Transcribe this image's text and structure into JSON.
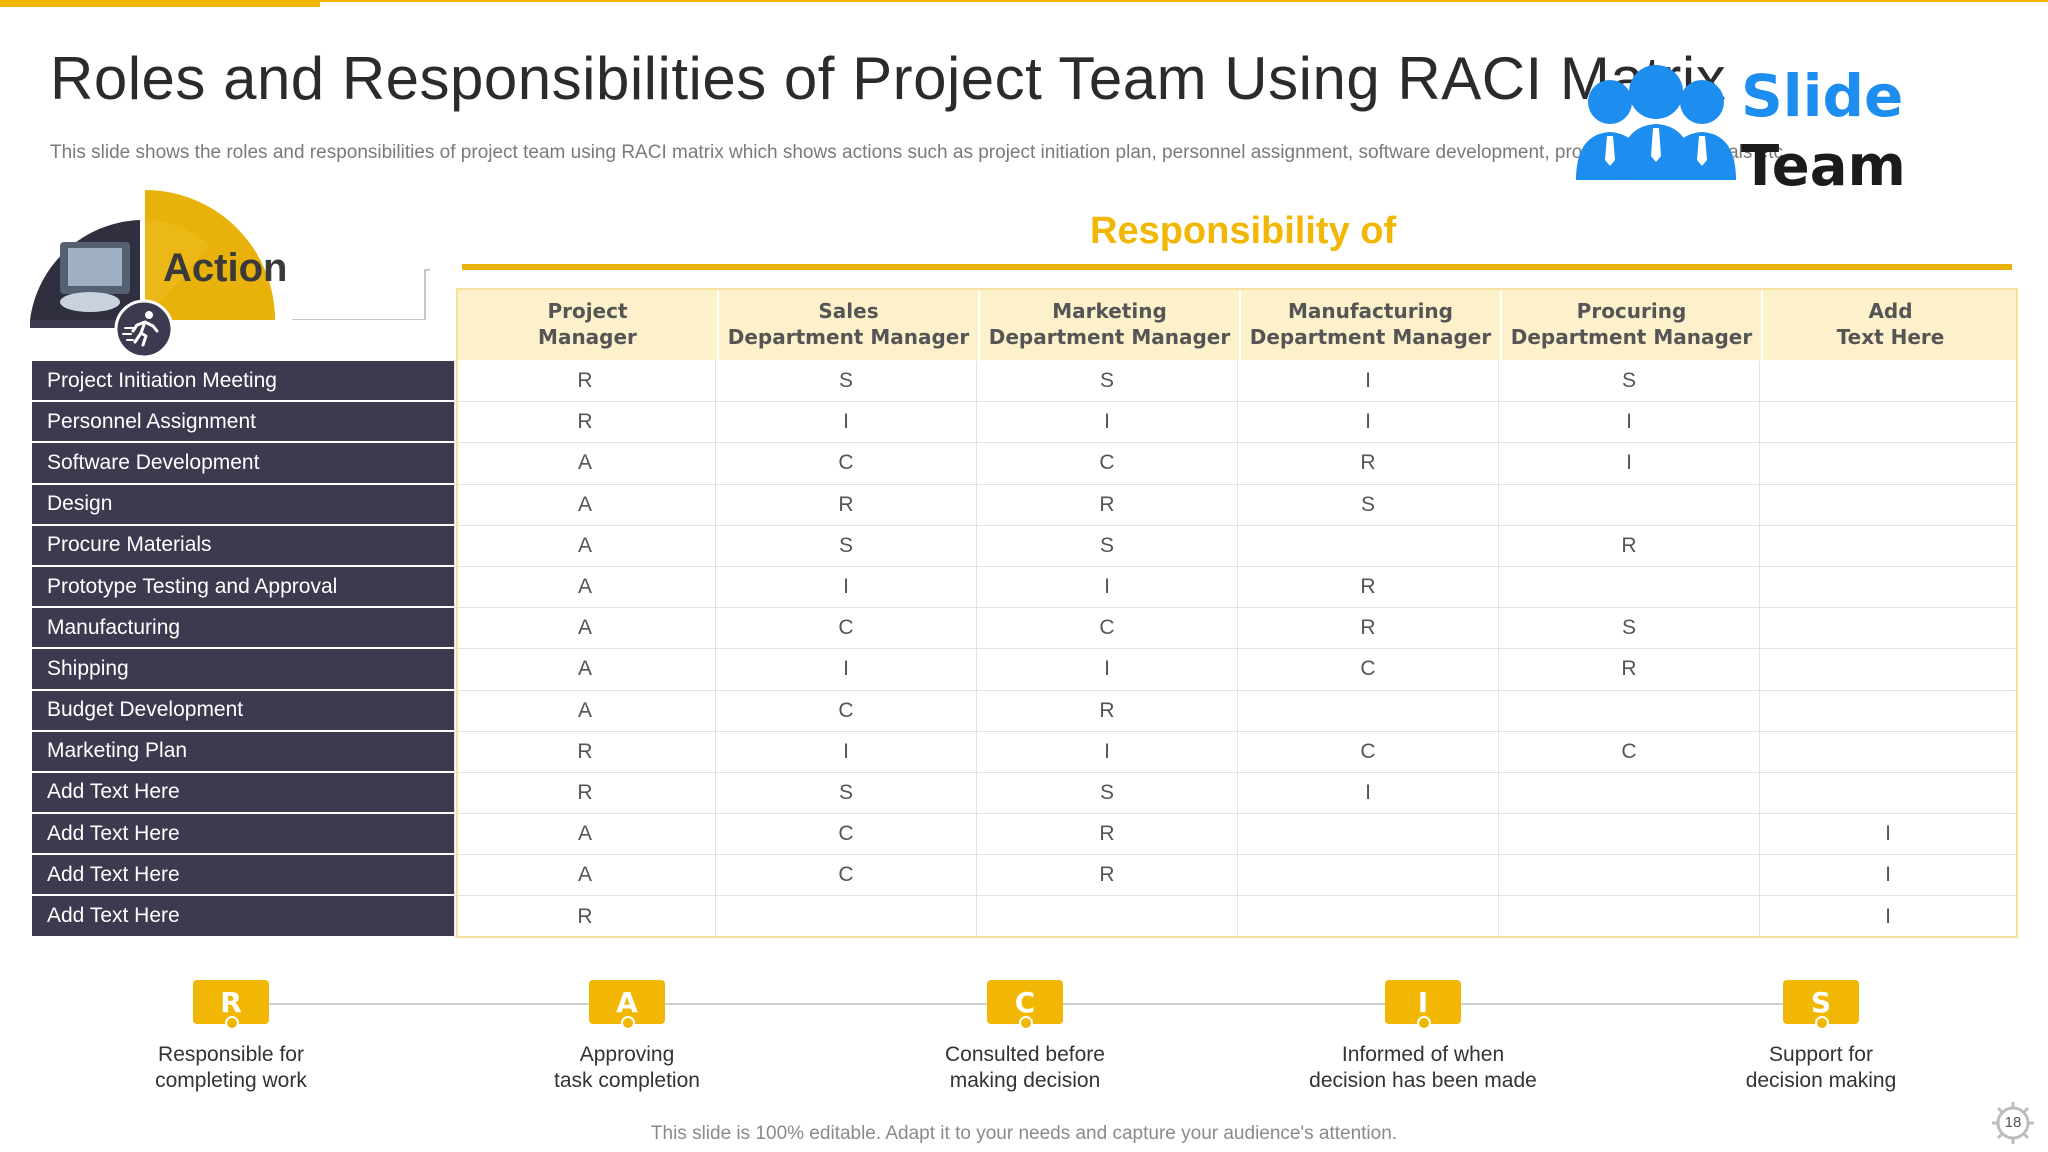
{
  "title": "Roles and Responsibilities of Project Team Using RACI Matrix",
  "subtitle": "This slide shows the roles and responsibilities of project team using RACI matrix which shows actions such as project initiation plan, personnel assignment, software development, procuring raw materials etc.",
  "logo": {
    "line1": "Slide",
    "line2": "Team"
  },
  "action_label": "Action",
  "responsibility_title": "Responsibility of",
  "columns": [
    "Project\nManager",
    "Sales\nDepartment Manager",
    "Marketing\nDepartment Manager",
    "Manufacturing\nDepartment Manager",
    "Procuring\nDepartment Manager",
    "Add\nText Here"
  ],
  "rows": [
    {
      "label": "Project Initiation Meeting",
      "cells": [
        "R",
        "S",
        "S",
        "I",
        "S",
        ""
      ]
    },
    {
      "label": "Personnel Assignment",
      "cells": [
        "R",
        "I",
        "I",
        "I",
        "I",
        ""
      ]
    },
    {
      "label": "Software Development",
      "cells": [
        "A",
        "C",
        "C",
        "R",
        "I",
        ""
      ]
    },
    {
      "label": "Design",
      "cells": [
        "A",
        "R",
        "R",
        "S",
        "",
        ""
      ]
    },
    {
      "label": "Procure Materials",
      "cells": [
        "A",
        "S",
        "S",
        "",
        "R",
        ""
      ]
    },
    {
      "label": "Prototype Testing and Approval",
      "cells": [
        "A",
        "I",
        "I",
        "R",
        "",
        ""
      ]
    },
    {
      "label": "Manufacturing",
      "cells": [
        "A",
        "C",
        "C",
        "R",
        "S",
        ""
      ]
    },
    {
      "label": "Shipping",
      "cells": [
        "A",
        "I",
        "I",
        "C",
        "R",
        ""
      ]
    },
    {
      "label": "Budget Development",
      "cells": [
        "A",
        "C",
        "R",
        "",
        "",
        ""
      ]
    },
    {
      "label": "Marketing Plan",
      "cells": [
        "R",
        "I",
        "I",
        "C",
        "C",
        ""
      ]
    },
    {
      "label": "Add Text Here",
      "cells": [
        "R",
        "S",
        "S",
        "I",
        "",
        ""
      ]
    },
    {
      "label": "Add Text Here",
      "cells": [
        "A",
        "C",
        "R",
        "",
        "",
        "I"
      ]
    },
    {
      "label": "Add Text Here",
      "cells": [
        "A",
        "C",
        "R",
        "",
        "",
        "I"
      ]
    },
    {
      "label": "Add Text Here",
      "cells": [
        "R",
        "",
        "",
        "",
        "",
        "I"
      ]
    }
  ],
  "legend": [
    {
      "letter": "R",
      "text": "Responsible for\ncompleting work"
    },
    {
      "letter": "A",
      "text": "Approving\ntask completion"
    },
    {
      "letter": "C",
      "text": "Consulted before\nmaking decision"
    },
    {
      "letter": "I",
      "text": "Informed of when\ndecision has been made"
    },
    {
      "letter": "S",
      "text": "Support for\ndecision making"
    }
  ],
  "footer": "This slide is 100% editable. Adapt it to your needs and capture your audience's attention.",
  "page_number": "18",
  "colors": {
    "accent": "#f2b705",
    "row_label_bg": "#3b3a4f",
    "header_bg": "#fdf1cc",
    "logo_blue": "#1e8df0"
  }
}
